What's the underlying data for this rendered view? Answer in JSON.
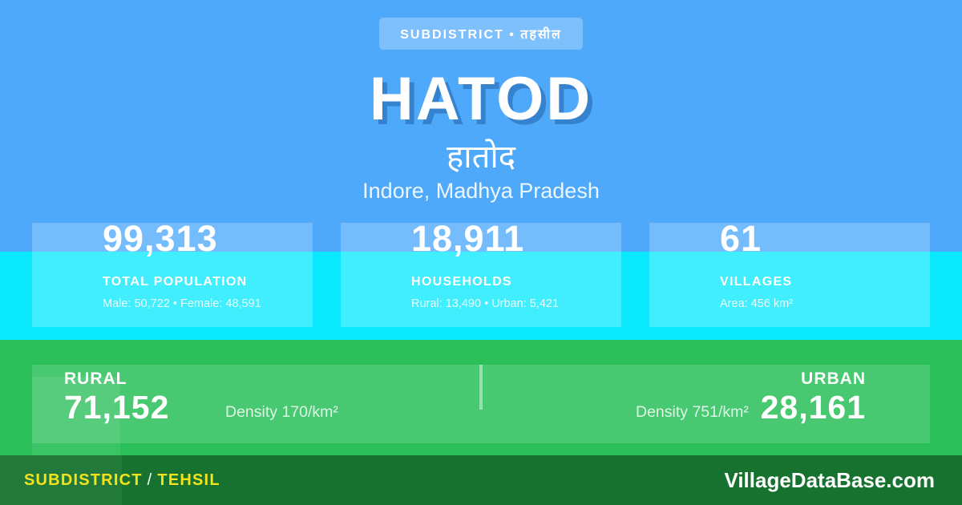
{
  "badge": {
    "label": "SUBDISTRICT • तहसील"
  },
  "header": {
    "title": "HATOD",
    "title_native": "हातोद",
    "location": "Indore, Madhya Pradesh"
  },
  "stats": [
    {
      "value": "99,313",
      "label": "TOTAL POPULATION",
      "detail": "Male: 50,722 • Female: 48,591"
    },
    {
      "value": "18,911",
      "label": "HOUSEHOLDS",
      "detail": "Rural: 13,490 • Urban: 5,421"
    },
    {
      "value": "61",
      "label": "VILLAGES",
      "detail": "Area: 456 km²"
    }
  ],
  "rural_urban": {
    "rural": {
      "label": "RURAL",
      "value": "71,152",
      "density": "Density 170/km²"
    },
    "urban": {
      "label": "URBAN",
      "value": "28,161",
      "density": "Density 751/km²"
    }
  },
  "footer": {
    "type_primary": "SUBDISTRICT",
    "type_separator": "/",
    "type_secondary": "TEHSIL",
    "site": "VillageDataBase.com"
  },
  "colors": {
    "background_blue": "#4FA9FB",
    "cyan_band": "#0BEAFD",
    "green_band": "#2BBF5A",
    "footer_green": "#18722F",
    "accent_yellow": "#F2E31C",
    "text_white": "#FFFFFF"
  }
}
